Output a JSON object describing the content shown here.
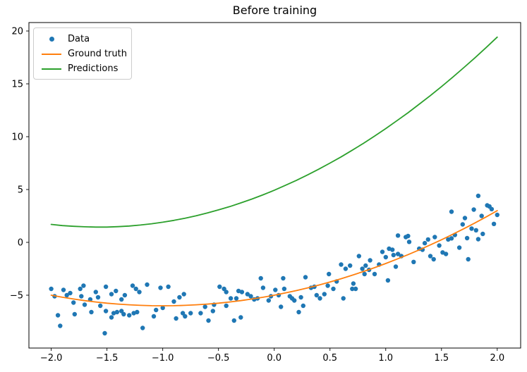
{
  "chart_data": {
    "type": "scatter",
    "title": "Before training",
    "xlabel": "",
    "ylabel": "",
    "xlim": [
      -2.2,
      2.21
    ],
    "ylim": [
      -10.0,
      20.8
    ],
    "grid": false,
    "legend_position": "upper left",
    "xticks": [
      -2.0,
      -1.5,
      -1.0,
      -0.5,
      0.0,
      0.5,
      1.0,
      1.5,
      2.0
    ],
    "xtick_labels": [
      "−2.0",
      "−1.5",
      "−1.0",
      "−0.5",
      "0.0",
      "0.5",
      "1.0",
      "1.5",
      "2.0"
    ],
    "yticks": [
      -5,
      0,
      5,
      10,
      15,
      20
    ],
    "ytick_labels": [
      "−5",
      "0",
      "5",
      "10",
      "15",
      "20"
    ],
    "legend": [
      {
        "label": "Data",
        "type": "marker",
        "color": "#1f77b4"
      },
      {
        "label": "Ground truth",
        "type": "line",
        "color": "#ff7f0e"
      },
      {
        "label": "Predictions",
        "type": "line",
        "color": "#2ca02c"
      }
    ],
    "series": [
      {
        "name": "Data",
        "type": "scatter",
        "color": "#1f77b4",
        "marker_radius": 3.2,
        "points": [
          [
            -2.0,
            -4.4
          ],
          [
            -1.97,
            -5.1
          ],
          [
            -1.94,
            -6.9
          ],
          [
            -1.92,
            -7.9
          ],
          [
            -1.89,
            -4.5
          ],
          [
            -1.86,
            -5.0
          ],
          [
            -1.83,
            -4.8
          ],
          [
            -1.8,
            -5.7
          ],
          [
            -1.79,
            -6.8
          ],
          [
            -1.74,
            -4.4
          ],
          [
            -1.73,
            -5.1
          ],
          [
            -1.71,
            -4.1
          ],
          [
            -1.7,
            -5.9
          ],
          [
            -1.65,
            -5.4
          ],
          [
            -1.64,
            -6.6
          ],
          [
            -1.6,
            -4.7
          ],
          [
            -1.58,
            -5.2
          ],
          [
            -1.56,
            -6.0
          ],
          [
            -1.52,
            -8.6
          ],
          [
            -1.51,
            -4.2
          ],
          [
            -1.51,
            -6.5
          ],
          [
            -1.46,
            -4.9
          ],
          [
            -1.46,
            -7.1
          ],
          [
            -1.44,
            -6.7
          ],
          [
            -1.42,
            -4.6
          ],
          [
            -1.41,
            -6.6
          ],
          [
            -1.37,
            -5.4
          ],
          [
            -1.37,
            -6.5
          ],
          [
            -1.35,
            -6.8
          ],
          [
            -1.34,
            -5.0
          ],
          [
            -1.3,
            -6.9
          ],
          [
            -1.27,
            -4.1
          ],
          [
            -1.26,
            -6.7
          ],
          [
            -1.24,
            -4.4
          ],
          [
            -1.23,
            -6.6
          ],
          [
            -1.21,
            -4.7
          ],
          [
            -1.18,
            -8.1
          ],
          [
            -1.14,
            -4.0
          ],
          [
            -1.08,
            -7.0
          ],
          [
            -1.06,
            -6.4
          ],
          [
            -1.02,
            -4.3
          ],
          [
            -1.0,
            -6.2
          ],
          [
            -0.95,
            -4.2
          ],
          [
            -0.9,
            -5.6
          ],
          [
            -0.88,
            -7.2
          ],
          [
            -0.85,
            -5.2
          ],
          [
            -0.82,
            -6.7
          ],
          [
            -0.81,
            -4.9
          ],
          [
            -0.8,
            -7.0
          ],
          [
            -0.75,
            -6.7
          ],
          [
            -0.66,
            -6.7
          ],
          [
            -0.62,
            -6.1
          ],
          [
            -0.59,
            -7.4
          ],
          [
            -0.55,
            -6.5
          ],
          [
            -0.54,
            -5.9
          ],
          [
            -0.49,
            -4.2
          ],
          [
            -0.45,
            -4.4
          ],
          [
            -0.43,
            -4.7
          ],
          [
            -0.43,
            -6.0
          ],
          [
            -0.39,
            -5.3
          ],
          [
            -0.36,
            -7.4
          ],
          [
            -0.34,
            -5.3
          ],
          [
            -0.32,
            -4.6
          ],
          [
            -0.3,
            -7.1
          ],
          [
            -0.29,
            -4.7
          ],
          [
            -0.24,
            -4.9
          ],
          [
            -0.21,
            -5.1
          ],
          [
            -0.18,
            -5.4
          ],
          [
            -0.15,
            -5.3
          ],
          [
            -0.12,
            -3.4
          ],
          [
            -0.1,
            -4.3
          ],
          [
            -0.05,
            -5.5
          ],
          [
            -0.03,
            -5.1
          ],
          [
            0.01,
            -4.5
          ],
          [
            0.04,
            -5.0
          ],
          [
            0.06,
            -6.1
          ],
          [
            0.08,
            -3.4
          ],
          [
            0.09,
            -4.4
          ],
          [
            0.14,
            -5.1
          ],
          [
            0.16,
            -5.3
          ],
          [
            0.18,
            -5.5
          ],
          [
            0.22,
            -6.6
          ],
          [
            0.24,
            -5.2
          ],
          [
            0.26,
            -6.0
          ],
          [
            0.28,
            -3.3
          ],
          [
            0.33,
            -4.3
          ],
          [
            0.36,
            -4.2
          ],
          [
            0.38,
            -5.0
          ],
          [
            0.41,
            -5.3
          ],
          [
            0.45,
            -4.9
          ],
          [
            0.48,
            -4.1
          ],
          [
            0.49,
            -3.0
          ],
          [
            0.53,
            -4.4
          ],
          [
            0.56,
            -3.7
          ],
          [
            0.6,
            -2.1
          ],
          [
            0.62,
            -5.3
          ],
          [
            0.64,
            -2.5
          ],
          [
            0.68,
            -2.2
          ],
          [
            0.7,
            -4.4
          ],
          [
            0.71,
            -3.9
          ],
          [
            0.73,
            -4.4
          ],
          [
            0.76,
            -1.3
          ],
          [
            0.79,
            -2.5
          ],
          [
            0.81,
            -3.0
          ],
          [
            0.82,
            -2.2
          ],
          [
            0.85,
            -2.6
          ],
          [
            0.86,
            -1.7
          ],
          [
            0.9,
            -3.0
          ],
          [
            0.94,
            -2.1
          ],
          [
            0.97,
            -0.9
          ],
          [
            1.0,
            -1.4
          ],
          [
            1.02,
            -3.6
          ],
          [
            1.03,
            -0.6
          ],
          [
            1.06,
            -0.7
          ],
          [
            1.07,
            -1.2
          ],
          [
            1.09,
            -2.3
          ],
          [
            1.11,
            0.65
          ],
          [
            1.11,
            -1.1
          ],
          [
            1.14,
            -1.3
          ],
          [
            1.18,
            0.5
          ],
          [
            1.2,
            0.6
          ],
          [
            1.21,
            0.05
          ],
          [
            1.25,
            -1.85
          ],
          [
            1.3,
            -0.6
          ],
          [
            1.33,
            -0.7
          ],
          [
            1.35,
            -0.07
          ],
          [
            1.38,
            0.27
          ],
          [
            1.4,
            -1.3
          ],
          [
            1.43,
            -1.6
          ],
          [
            1.44,
            0.5
          ],
          [
            1.48,
            -0.3
          ],
          [
            1.51,
            -0.95
          ],
          [
            1.54,
            -1.1
          ],
          [
            1.56,
            0.27
          ],
          [
            1.59,
            0.38
          ],
          [
            1.59,
            2.9
          ],
          [
            1.62,
            0.7
          ],
          [
            1.66,
            -0.5
          ],
          [
            1.69,
            1.7
          ],
          [
            1.71,
            2.3
          ],
          [
            1.73,
            0.4
          ],
          [
            1.74,
            -1.6
          ],
          [
            1.77,
            1.3
          ],
          [
            1.79,
            3.1
          ],
          [
            1.81,
            1.15
          ],
          [
            1.83,
            4.4
          ],
          [
            1.83,
            0.3
          ],
          [
            1.86,
            2.5
          ],
          [
            1.87,
            0.8
          ],
          [
            1.91,
            3.5
          ],
          [
            1.93,
            3.4
          ],
          [
            1.95,
            3.15
          ],
          [
            1.97,
            1.75
          ],
          [
            2.0,
            2.6
          ]
        ]
      },
      {
        "name": "Ground truth",
        "type": "line",
        "color": "#ff7f0e",
        "line_width": 1.8,
        "x": [
          -2.0,
          -1.9,
          -1.8,
          -1.7,
          -1.6,
          -1.5,
          -1.4,
          -1.3,
          -1.2,
          -1.1,
          -1.0,
          -0.9,
          -0.8,
          -0.7,
          -0.6,
          -0.5,
          -0.4,
          -0.3,
          -0.2,
          -0.1,
          0.0,
          0.1,
          0.2,
          0.3,
          0.4,
          0.5,
          0.6,
          0.7,
          0.8,
          0.9,
          1.0,
          1.1,
          1.2,
          1.3,
          1.4,
          1.5,
          1.6,
          1.7,
          1.8,
          1.9,
          2.0
        ],
        "y": [
          -5.0,
          -5.19,
          -5.36,
          -5.51,
          -5.64,
          -5.75,
          -5.84,
          -5.91,
          -5.96,
          -5.99,
          -6.0,
          -5.99,
          -5.96,
          -5.91,
          -5.84,
          -5.75,
          -5.64,
          -5.51,
          -5.36,
          -5.19,
          -5.0,
          -4.79,
          -4.56,
          -4.31,
          -4.04,
          -3.75,
          -3.44,
          -3.11,
          -2.76,
          -2.39,
          -2.0,
          -1.59,
          -1.16,
          -0.71,
          -0.24,
          0.25,
          0.76,
          1.29,
          1.84,
          2.41,
          3.0
        ]
      },
      {
        "name": "Predictions",
        "type": "line",
        "color": "#2ca02c",
        "line_width": 1.8,
        "x": [
          -2.0,
          -1.9,
          -1.8,
          -1.7,
          -1.6,
          -1.5,
          -1.4,
          -1.3,
          -1.2,
          -1.1,
          -1.0,
          -0.9,
          -0.8,
          -0.7,
          -0.6,
          -0.5,
          -0.4,
          -0.3,
          -0.2,
          -0.1,
          0.0,
          0.1,
          0.2,
          0.3,
          0.4,
          0.5,
          0.6,
          0.7,
          0.8,
          0.9,
          1.0,
          1.1,
          1.2,
          1.3,
          1.4,
          1.5,
          1.6,
          1.7,
          1.8,
          1.9,
          2.0
        ],
        "y": [
          1.7,
          1.59,
          1.52,
          1.47,
          1.45,
          1.45,
          1.49,
          1.55,
          1.64,
          1.76,
          1.91,
          2.08,
          2.29,
          2.52,
          2.78,
          3.07,
          3.38,
          3.73,
          4.1,
          4.5,
          4.93,
          5.39,
          5.87,
          6.39,
          6.93,
          7.5,
          8.09,
          8.72,
          9.37,
          10.06,
          10.77,
          11.51,
          12.27,
          13.07,
          13.89,
          14.74,
          15.62,
          16.53,
          17.46,
          18.43,
          19.42
        ]
      }
    ]
  }
}
